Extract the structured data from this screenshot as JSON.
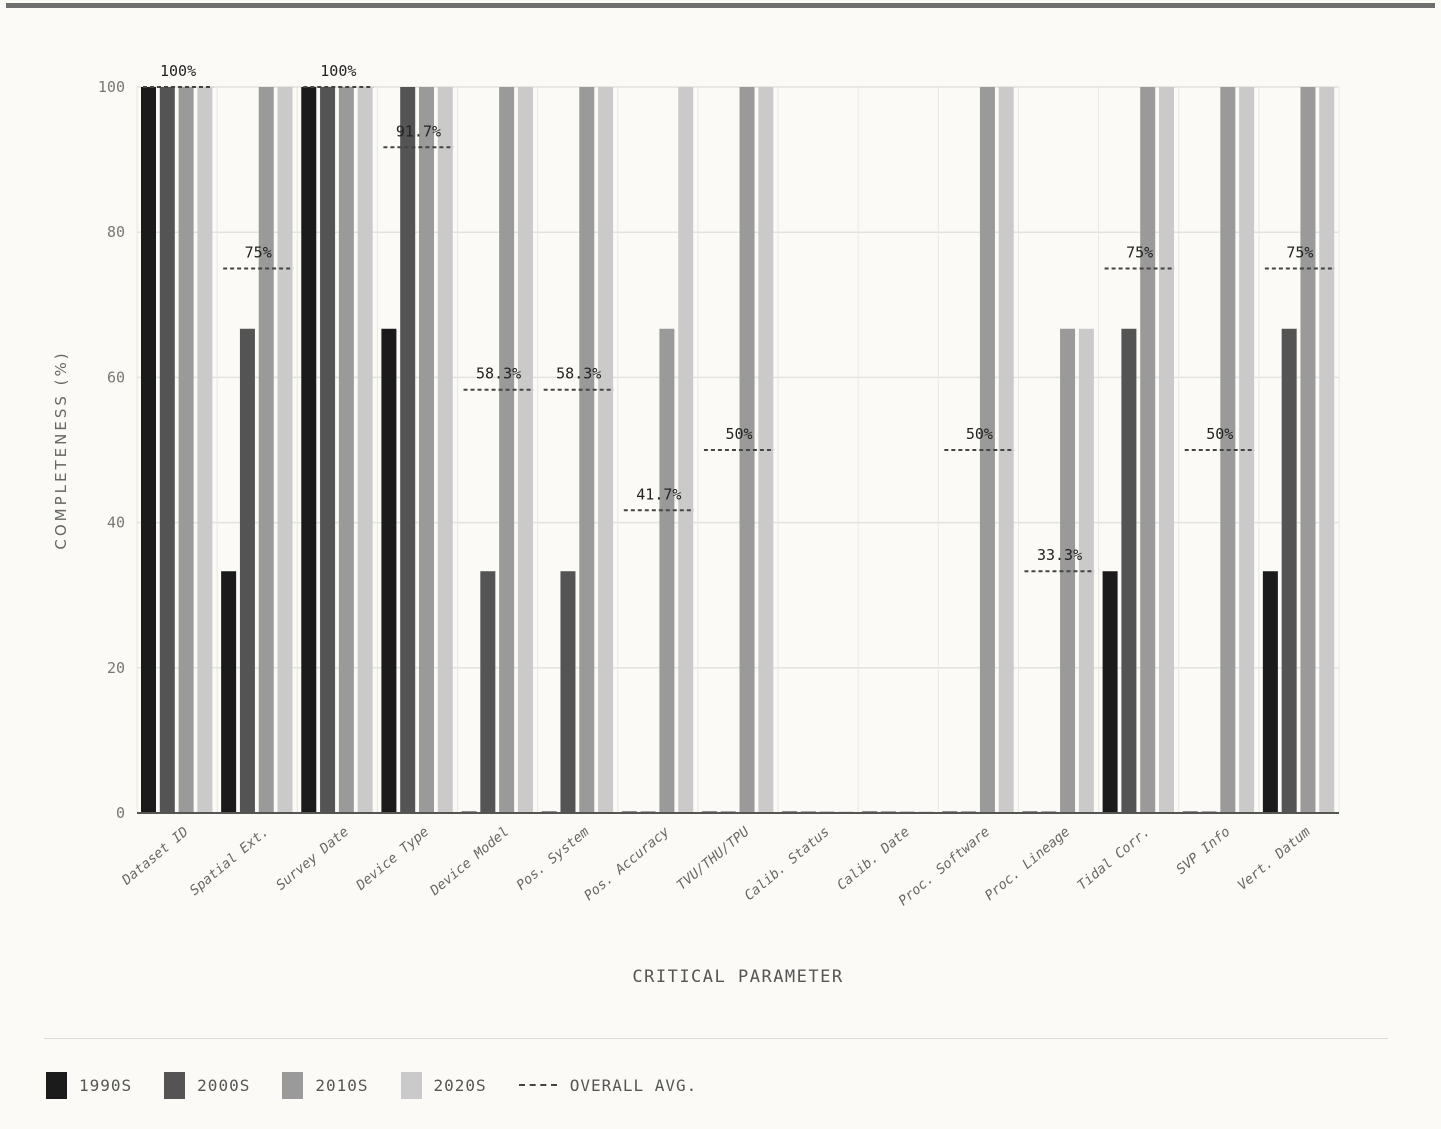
{
  "chart_data": {
    "type": "bar",
    "xlabel": "CRITICAL PARAMETER",
    "ylabel": "COMPLETENESS (%)",
    "ylim": [
      0,
      100
    ],
    "yticks": [
      0,
      20,
      40,
      60,
      80,
      100
    ],
    "grid": true,
    "legend_position": "bottom-left",
    "categories": [
      "Dataset ID",
      "Spatial Ext.",
      "Survey Date",
      "Device Type",
      "Device Model",
      "Pos. System",
      "Pos. Accuracy",
      "TVU/THU/TPU",
      "Calib. Status",
      "Calib. Date",
      "Proc. Software",
      "Proc. Lineage",
      "Tidal Corr.",
      "SVP Info",
      "Vert. Datum"
    ],
    "series": [
      {
        "name": "1990S",
        "color": "#1b1b1b",
        "values": [
          100,
          33.3,
          100,
          66.7,
          0,
          0,
          0,
          0,
          0,
          0,
          0,
          0,
          33.3,
          0,
          33.3
        ]
      },
      {
        "name": "2000S",
        "color": "#545454",
        "values": [
          100,
          66.7,
          100,
          100,
          33.3,
          33.3,
          0,
          0,
          0,
          0,
          0,
          0,
          66.7,
          0,
          66.7
        ]
      },
      {
        "name": "2010S",
        "color": "#9a9a9a",
        "values": [
          100,
          100,
          100,
          100,
          100,
          100,
          66.7,
          100,
          0,
          0,
          100,
          66.7,
          100,
          100,
          100
        ]
      },
      {
        "name": "2020S",
        "color": "#cacaca",
        "values": [
          100,
          100,
          100,
          100,
          100,
          100,
          100,
          100,
          0,
          0,
          100,
          66.7,
          100,
          100,
          100
        ]
      }
    ],
    "overall_avg": {
      "name": "OVERALL AVG.",
      "values": [
        100,
        75,
        100,
        91.7,
        58.3,
        58.3,
        41.7,
        50,
        0,
        0,
        50,
        33.3,
        75,
        50,
        75
      ],
      "labels": [
        "100%",
        "75%",
        "100%",
        "91.7%",
        "58.3%",
        "58.3%",
        "41.7%",
        "50%",
        "",
        "",
        "50%",
        "33.3%",
        "75%",
        "50%",
        "75%"
      ]
    }
  }
}
